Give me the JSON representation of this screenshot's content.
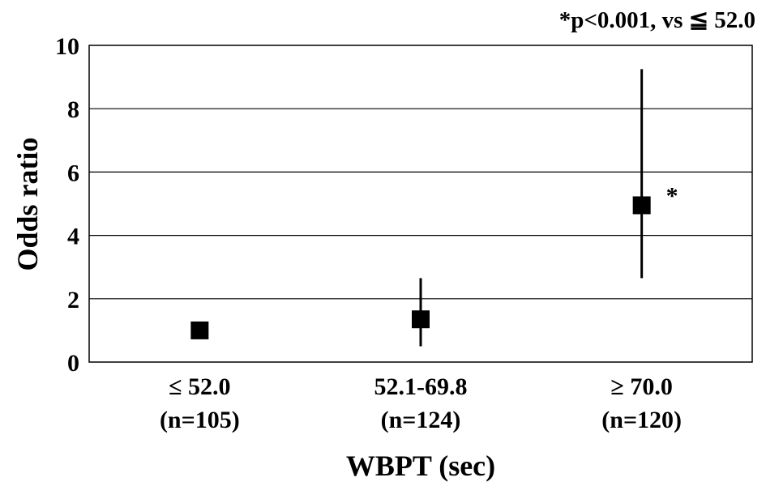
{
  "chart_data": {
    "type": "scatter",
    "annotation": "*p<0.001, vs ≦ 52.0",
    "xlabel": "WBPT (sec)",
    "ylabel": "Odds ratio",
    "ylim": [
      0,
      10
    ],
    "yticks": [
      0,
      2,
      4,
      6,
      8,
      10
    ],
    "grid": true,
    "categories": [
      {
        "label": "≤ 52.0",
        "n": "(n=105)"
      },
      {
        "label": "52.1-69.8",
        "n": "(n=124)"
      },
      {
        "label": "≥ 70.0",
        "n": "(n=120)"
      }
    ],
    "points": [
      {
        "value": 1.0,
        "ci_low": null,
        "ci_high": null,
        "marker": ""
      },
      {
        "value": 1.35,
        "ci_low": 0.5,
        "ci_high": 2.65,
        "marker": ""
      },
      {
        "value": 4.95,
        "ci_low": 2.65,
        "ci_high": 9.25,
        "marker": "*"
      }
    ]
  }
}
